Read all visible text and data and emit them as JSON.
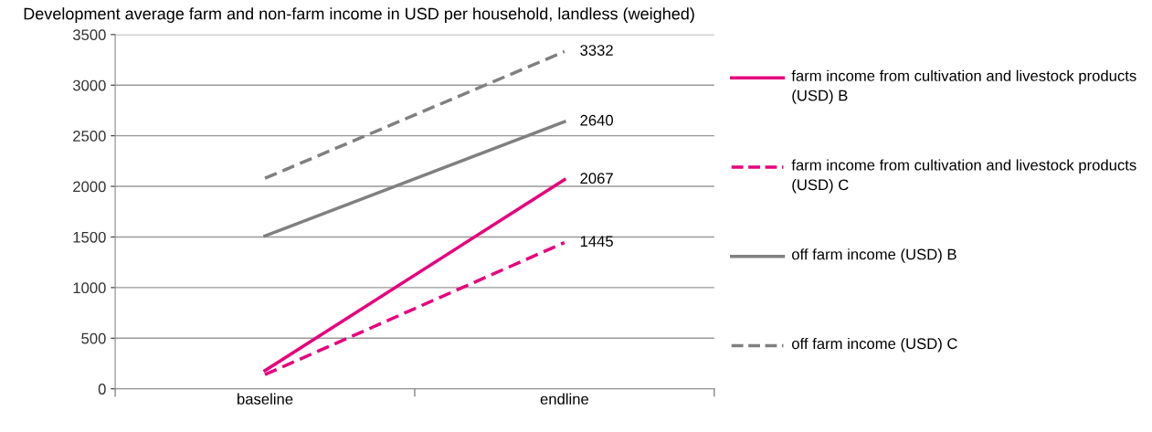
{
  "chart_data": {
    "type": "line",
    "title": "Development average farm and non-farm income in USD per household, landless (weighed)",
    "categories": [
      "baseline",
      "endline"
    ],
    "series": [
      {
        "name": "farm income from cultivation and livestock products (USD) B",
        "color": "#e6007e",
        "line_style": "solid",
        "values": [
          180,
          2067
        ],
        "value_labels": [
          null,
          "2067"
        ]
      },
      {
        "name": "farm income from cultivation and livestock products (USD) C",
        "color": "#e6007e",
        "line_style": "dashed",
        "values": [
          140,
          1445
        ],
        "value_labels": [
          null,
          "1445"
        ]
      },
      {
        "name": "off farm income (USD) B",
        "color": "#808080",
        "line_style": "solid",
        "values": [
          1510,
          2640
        ],
        "value_labels": [
          null,
          "2640"
        ]
      },
      {
        "name": "off farm income (USD) C",
        "color": "#808080",
        "line_style": "dashed",
        "values": [
          2080,
          3332
        ],
        "value_labels": [
          null,
          "3332"
        ]
      }
    ],
    "ylim": [
      0,
      3500
    ],
    "yticks": [
      0,
      500,
      1000,
      1500,
      2000,
      2500,
      3000,
      3500
    ],
    "grid": "y",
    "legend": "right",
    "marker": "none"
  }
}
